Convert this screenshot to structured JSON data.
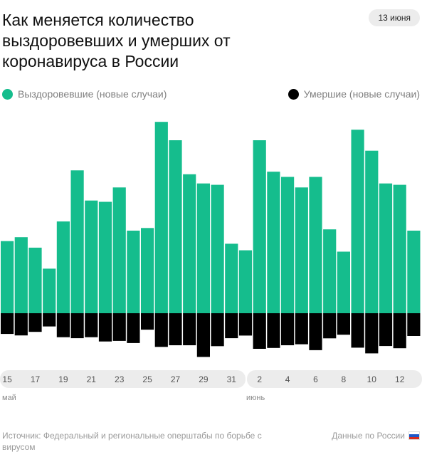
{
  "header": {
    "title": "Как меняется количество выздоровевших и умерших от коронавируса в России",
    "date": "13 июня"
  },
  "legend": {
    "recovered": {
      "label": "Выздоровевшие (новые случаи)",
      "color": "#15bd8d"
    },
    "deaths": {
      "label": "Умершие (новые случаи)",
      "color": "#000000"
    }
  },
  "chart_data": {
    "type": "bar",
    "categories": [
      "15",
      "16",
      "17",
      "18",
      "19",
      "20",
      "21",
      "22",
      "23",
      "24",
      "25",
      "26",
      "27",
      "28",
      "29",
      "30",
      "31",
      "1",
      "2",
      "3",
      "4",
      "5",
      "6",
      "7",
      "8",
      "9",
      "10",
      "11",
      "12",
      "13"
    ],
    "series": [
      {
        "name": "Выздоровевшие (новые случаи)",
        "values": [
          5500,
          5800,
          5000,
          3400,
          7000,
          10900,
          8600,
          8500,
          9600,
          6300,
          6500,
          14600,
          13200,
          10600,
          9900,
          9800,
          5300,
          4800,
          13200,
          10800,
          10400,
          9600,
          10400,
          6400,
          4700,
          14000,
          12400,
          9900,
          9800,
          6300
        ]
      },
      {
        "name": "Умершие (новые случаи)",
        "values": [
          150,
          161,
          135,
          96,
          174,
          181,
          174,
          205,
          201,
          216,
          119,
          244,
          232,
          232,
          317,
          239,
          181,
          162,
          258,
          252,
          232,
          225,
          268,
          182,
          156,
          250,
          291,
          238,
          254,
          165
        ]
      },
      {
        "max_recovered": 14600
      }
    ],
    "x_tick_labels": [
      "15",
      "17",
      "19",
      "21",
      "23",
      "25",
      "27",
      "29",
      "31",
      "2",
      "4",
      "6",
      "8",
      "10",
      "12"
    ],
    "month_labels": [
      "май",
      "июнь"
    ]
  },
  "footer": {
    "source": "Источник: Федеральный и региональные оперштабы по борьбе с вирусом",
    "region": "Данные по России"
  }
}
